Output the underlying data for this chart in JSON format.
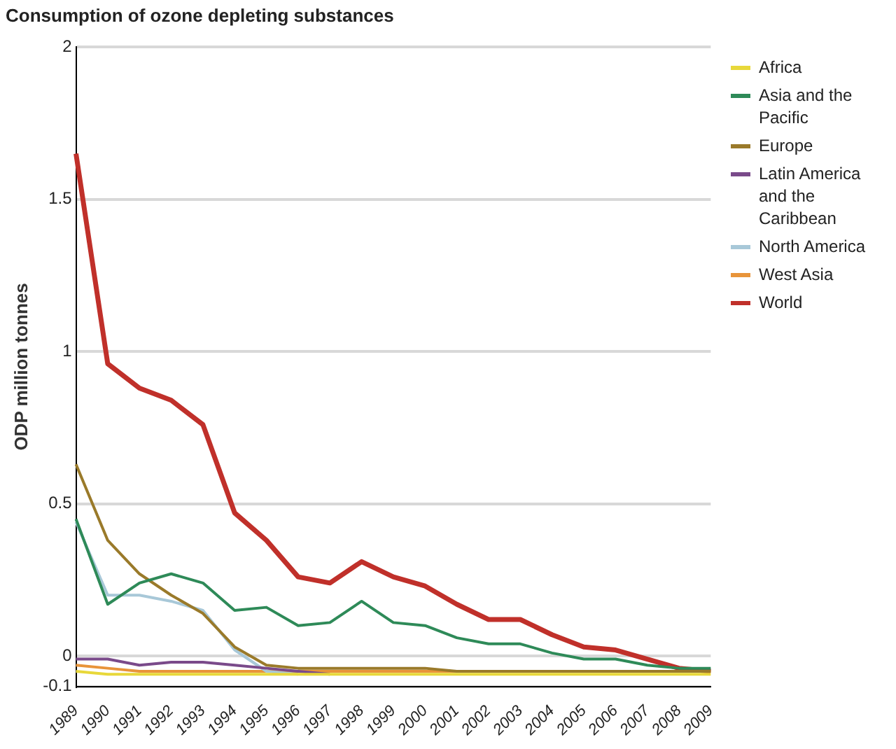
{
  "chart_data": {
    "type": "line",
    "title": "Consumption of ozone depleting substances",
    "ylabel": "ODP million tonnes",
    "categories": [
      "1989",
      "1990",
      "1991",
      "1992",
      "1993",
      "1994",
      "1995",
      "1996",
      "1997",
      "1998",
      "1999",
      "2000",
      "2001",
      "2002",
      "2003",
      "2004",
      "2005",
      "2006",
      "2007",
      "2008",
      "2009"
    ],
    "series": [
      {
        "name": "Africa",
        "color": "#e8d83a",
        "values": [
          -0.05,
          -0.06,
          -0.06,
          -0.06,
          -0.06,
          -0.06,
          -0.06,
          -0.06,
          -0.06,
          -0.06,
          -0.06,
          -0.06,
          -0.06,
          -0.06,
          -0.06,
          -0.06,
          -0.06,
          -0.06,
          -0.06,
          -0.06,
          -0.06
        ]
      },
      {
        "name": "Asia and the Pacific",
        "color": "#2e8a58",
        "values": [
          0.45,
          0.17,
          0.24,
          0.27,
          0.24,
          0.15,
          0.16,
          0.1,
          0.11,
          0.18,
          0.11,
          0.1,
          0.06,
          0.04,
          0.04,
          0.01,
          -0.01,
          -0.01,
          -0.03,
          -0.04,
          -0.04
        ]
      },
      {
        "name": "Europe",
        "color": "#9a7a2a",
        "values": [
          0.63,
          0.38,
          0.27,
          0.2,
          0.14,
          0.03,
          -0.03,
          -0.04,
          -0.04,
          -0.04,
          -0.04,
          -0.04,
          -0.05,
          -0.05,
          -0.05,
          -0.05,
          -0.05,
          -0.05,
          -0.05,
          -0.05,
          -0.05
        ]
      },
      {
        "name": "Latin America and the Caribbean",
        "color": "#7a4a8a",
        "values": [
          -0.01,
          -0.01,
          -0.03,
          -0.02,
          -0.02,
          -0.03,
          -0.04,
          -0.05,
          -0.06,
          null,
          null,
          null,
          null,
          null,
          null,
          null,
          null,
          null,
          null,
          null,
          null
        ]
      },
      {
        "name": "North America",
        "color": "#a8c8d8",
        "values": [
          0.44,
          0.2,
          0.2,
          0.18,
          0.15,
          0.02,
          -0.05,
          -0.06,
          null,
          null,
          null,
          null,
          null,
          null,
          null,
          null,
          null,
          null,
          null,
          null,
          null
        ]
      },
      {
        "name": "West Asia",
        "color": "#e8943a",
        "values": [
          -0.03,
          -0.04,
          -0.05,
          -0.05,
          -0.05,
          -0.05,
          -0.05,
          -0.05,
          -0.05,
          -0.05,
          -0.05,
          -0.05,
          -0.05,
          -0.05,
          -0.05,
          -0.05,
          -0.05,
          -0.05,
          -0.05,
          -0.05,
          -0.05
        ]
      },
      {
        "name": "World",
        "color": "#c0302a",
        "values": [
          1.65,
          0.96,
          0.88,
          0.84,
          0.76,
          0.47,
          0.38,
          0.26,
          0.24,
          0.31,
          0.26,
          0.23,
          0.17,
          0.12,
          0.12,
          0.07,
          0.03,
          0.02,
          -0.01,
          -0.04,
          -0.05
        ]
      }
    ],
    "ylim": [
      -0.1,
      2
    ],
    "yticks": [
      -0.1,
      0,
      0.5,
      1,
      1.5,
      2
    ],
    "grid": "y",
    "legend": "top right",
    "marker": "none",
    "line_style": "solid"
  }
}
